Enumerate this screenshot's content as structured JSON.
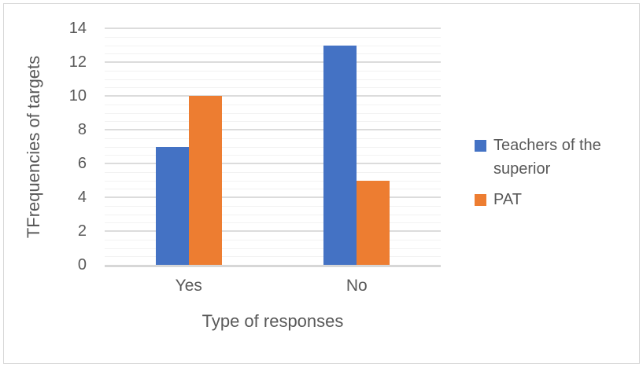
{
  "chart_data": {
    "type": "bar",
    "categories": [
      "Yes",
      "No"
    ],
    "series": [
      {
        "name": "Teachers of the superior",
        "color": "#4472C4",
        "values": [
          7,
          13
        ]
      },
      {
        "name": "PAT",
        "color": "#ED7D31",
        "values": [
          10,
          5
        ]
      }
    ],
    "title": "",
    "xlabel": "Type of responses",
    "ylabel": "TFrequencies of targets",
    "ylim": [
      0,
      14
    ],
    "ytick_step": 2,
    "yminor_step": 0.5,
    "grid": "horizontal-major-and-minor",
    "legend_position": "right",
    "colors": {
      "text": "#595959",
      "major_gridline": "#DCDCDC",
      "minor_gridline": "#F2F2F2",
      "axis_line": "#D7D7D7",
      "figure_border": "#D9D9D9",
      "series_blue": "#4472C4",
      "series_orange": "#ED7D31"
    }
  }
}
